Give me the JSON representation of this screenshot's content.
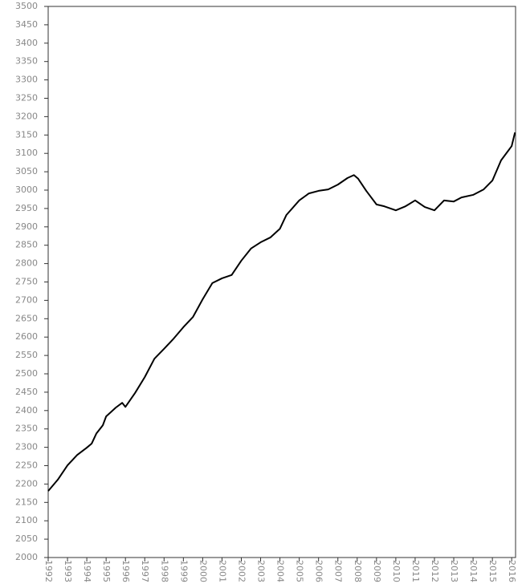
{
  "chart_data": {
    "type": "line",
    "x": [
      1992.0,
      1992.5,
      1993.0,
      1993.5,
      1994.0,
      1994.25,
      1994.5,
      1994.83,
      1995.0,
      1995.5,
      1995.83,
      1996.0,
      1996.5,
      1997.0,
      1997.5,
      1998.0,
      1998.5,
      1999.0,
      1999.5,
      2000.0,
      2000.5,
      2001.0,
      2001.5,
      2002.0,
      2002.5,
      2003.0,
      2003.5,
      2004.0,
      2004.33,
      2005.0,
      2005.5,
      2006.0,
      2006.5,
      2007.0,
      2007.5,
      2007.83,
      2008.05,
      2008.47,
      2009.0,
      2009.4,
      2010.0,
      2010.5,
      2011.0,
      2011.5,
      2012.0,
      2012.5,
      2013.0,
      2013.4,
      2014.0,
      2014.55,
      2015.0,
      2015.45,
      2016.0,
      2016.17
    ],
    "series": [
      {
        "color": "#000000",
        "values": [
          2181,
          2212,
          2251,
          2279,
          2299,
          2310,
          2338,
          2360,
          2384,
          2408,
          2421,
          2410,
          2448,
          2491,
          2541,
          2568,
          2596,
          2627,
          2655,
          2703,
          2747,
          2760,
          2769,
          2808,
          2841,
          2858,
          2871,
          2895,
          2932,
          2972,
          2991,
          2998,
          3002,
          3015,
          3033,
          3041,
          3031,
          2998,
          2961,
          2956,
          2945,
          2956,
          2972,
          2954,
          2945,
          2972,
          2969,
          2980,
          2987,
          3002,
          3026,
          3081,
          3120,
          3157
        ]
      }
    ],
    "xlim": [
      1992,
      2016.2
    ],
    "xticks": [
      1992,
      1993,
      1994,
      1995,
      1996,
      1997,
      1998,
      1999,
      2000,
      2001,
      2002,
      2003,
      2004,
      2005,
      2006,
      2007,
      2008,
      2009,
      2010,
      2011,
      2012,
      2013,
      2014,
      2015,
      2016
    ],
    "ylim": [
      2000,
      3500
    ],
    "yticks": [
      2000,
      2050,
      2100,
      2150,
      2200,
      2250,
      2300,
      2350,
      2400,
      2450,
      2500,
      2550,
      2600,
      2650,
      2700,
      2750,
      2800,
      2850,
      2900,
      2950,
      3000,
      3050,
      3100,
      3150,
      3200,
      3250,
      3300,
      3350,
      3400,
      3450,
      3500
    ]
  }
}
